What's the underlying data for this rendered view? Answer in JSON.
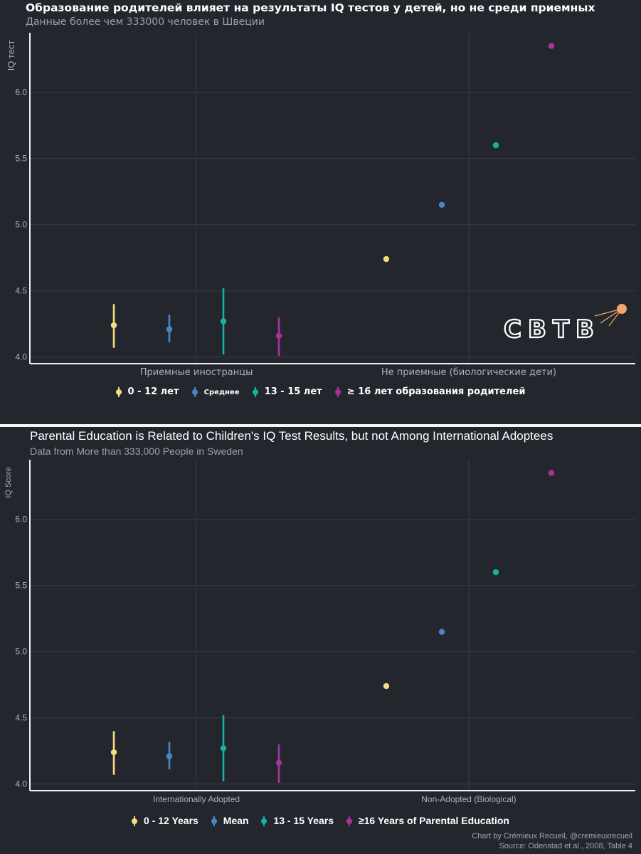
{
  "colors": {
    "background": "#23272d",
    "grid": "#363c44",
    "axis": "#f0f0f0",
    "tick": "#aab0b6",
    "series": [
      "#f7dc7e",
      "#4a86c5",
      "#14b1a5",
      "#a8349b"
    ],
    "logo_accent": "#f0a868"
  },
  "panel_ru": {
    "title": "Образование родителей влияет на результаты IQ тестов у детей, но не среди приемных",
    "subtitle": "Данные более чем 333000 человек в Швеции",
    "legend": [
      "0 - 12 лет",
      "Среднее",
      "13 - 15 лет",
      "≥ 16 лет образования родителей"
    ],
    "logo_text": "СВТВ",
    "chart_data": {
      "type": "scatter",
      "ylabel": "IQ тест",
      "xlabel": "",
      "categories": [
        "Приемные иностранцы",
        "Не приемные (биологические дети)"
      ],
      "y_ticks": [
        "4.0",
        "4.5",
        "5.0",
        "5.5",
        "6.0"
      ],
      "ylim": [
        3.95,
        6.45
      ],
      "grid": true,
      "legend_position": "bottom",
      "series": [
        {
          "name": "0 - 12 лет",
          "values": [
            4.24,
            4.74
          ],
          "low": [
            4.07,
            null
          ],
          "high": [
            4.4,
            null
          ]
        },
        {
          "name": "Среднее",
          "values": [
            4.21,
            5.15
          ],
          "low": [
            4.11,
            null
          ],
          "high": [
            4.32,
            null
          ]
        },
        {
          "name": "13 - 15 лет",
          "values": [
            4.27,
            5.6
          ],
          "low": [
            4.02,
            null
          ],
          "high": [
            4.52,
            null
          ]
        },
        {
          "name": "≥ 16 лет образования родителей",
          "values": [
            4.16,
            6.35
          ],
          "low": [
            4.01,
            null
          ],
          "high": [
            4.3,
            null
          ]
        }
      ]
    }
  },
  "panel_en": {
    "title": "Parental Education is Related to Children's IQ Test Results, but not Among International Adoptees",
    "subtitle": "Data from More than 333,000 People in Sweden",
    "legend": [
      "0 - 12 Years",
      "Mean",
      "13 - 15 Years",
      "≥16 Years of Parental Education"
    ],
    "credit_line1": "Chart by Crémieux Recueil, @cremieuxrecueil",
    "credit_line2": "Source: Odenstad et al., 2008, Table 4",
    "chart_data": {
      "type": "scatter",
      "ylabel": "IQ Score",
      "xlabel": "",
      "categories": [
        "Internationally Adopted",
        "Non-Adopted (Biological)"
      ],
      "y_ticks": [
        "4.0",
        "4.5",
        "5.0",
        "5.5",
        "6.0"
      ],
      "ylim": [
        3.95,
        6.45
      ],
      "grid": true,
      "legend_position": "bottom",
      "series": [
        {
          "name": "0 - 12 Years",
          "values": [
            4.24,
            4.74
          ],
          "low": [
            4.07,
            null
          ],
          "high": [
            4.4,
            null
          ]
        },
        {
          "name": "Mean",
          "values": [
            4.21,
            5.15
          ],
          "low": [
            4.11,
            null
          ],
          "high": [
            4.32,
            null
          ]
        },
        {
          "name": "13 - 15 Years",
          "values": [
            4.27,
            5.6
          ],
          "low": [
            4.02,
            null
          ],
          "high": [
            4.52,
            null
          ]
        },
        {
          "name": "≥16 Years of Parental Education",
          "values": [
            4.16,
            6.35
          ],
          "low": [
            4.01,
            null
          ],
          "high": [
            4.3,
            null
          ]
        }
      ]
    }
  }
}
